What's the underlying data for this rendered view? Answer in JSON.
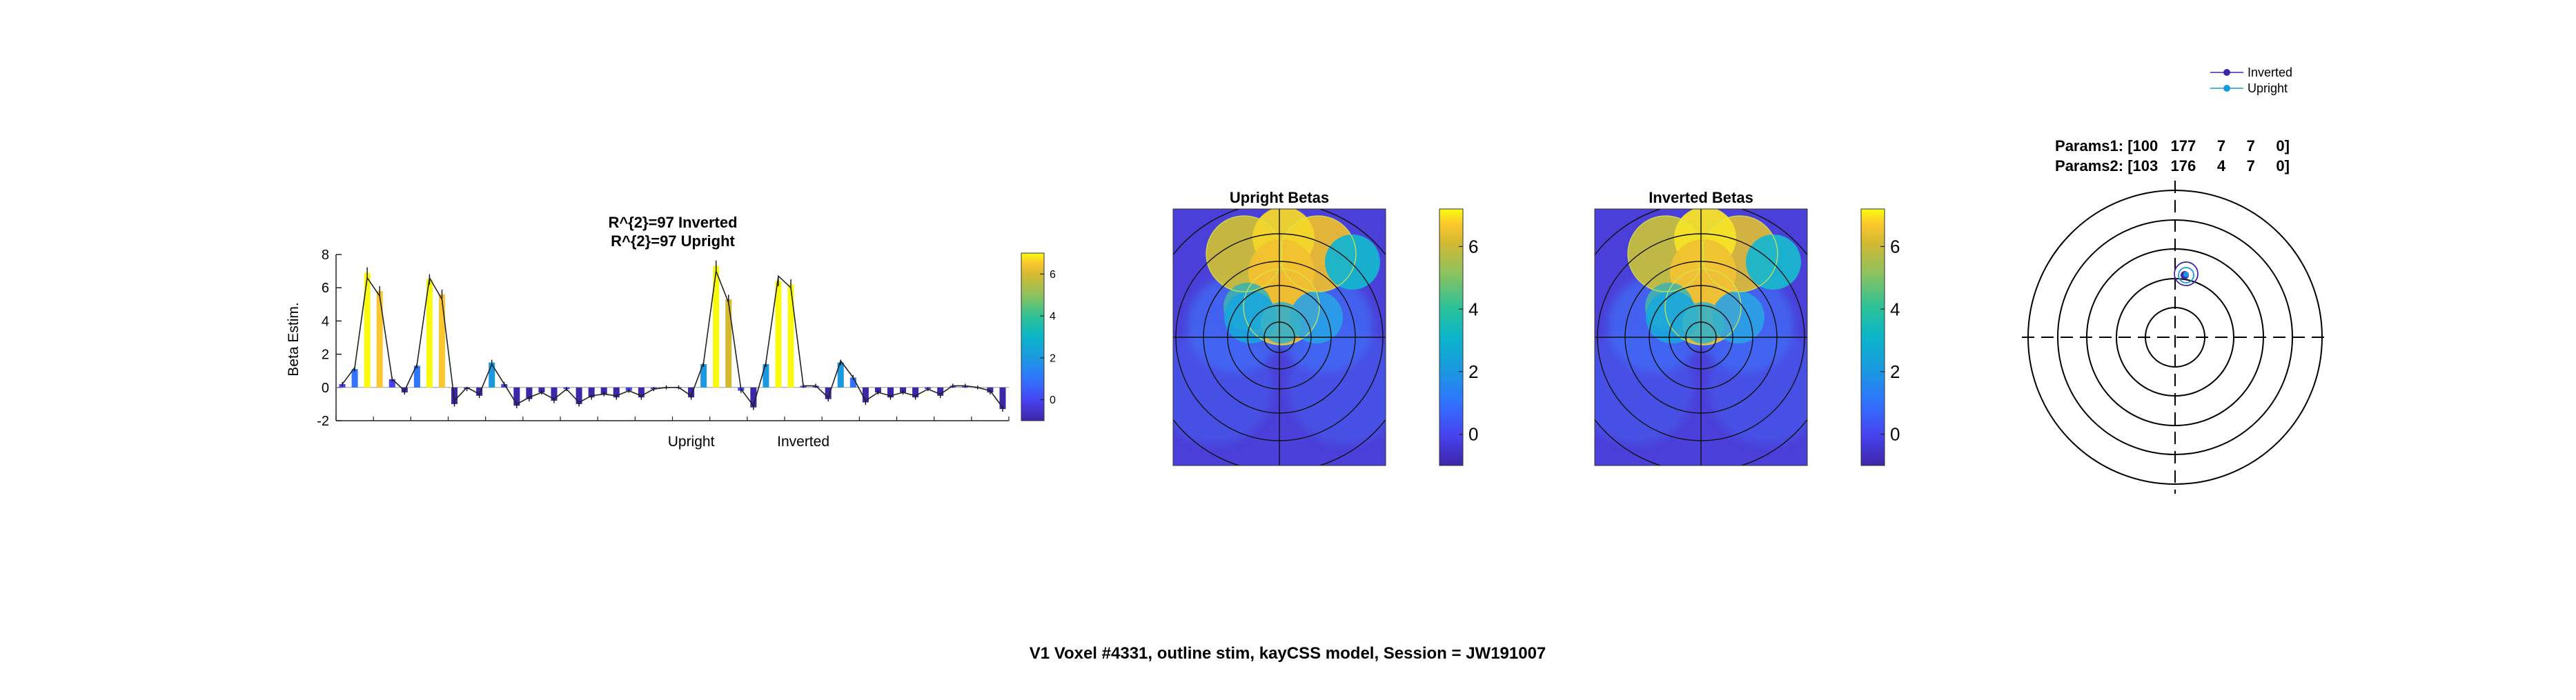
{
  "figure_title": "V1 Voxel #4331, outline stim, kayCSS model, Session = JW191007",
  "colormap": [
    "#3e26a8",
    "#4743f0",
    "#2f75fe",
    "#1b98e0",
    "#0bb5c9",
    "#2dc296",
    "#8ec25d",
    "#d4b931",
    "#fbc72e",
    "#f9fb0e"
  ],
  "chart_data": [
    {
      "type": "bar",
      "title_lines": [
        "R^{2}=97 Inverted",
        "R^{2}=97 Upright"
      ],
      "ylabel": "Beta Estim.",
      "ylim": [
        -2,
        8
      ],
      "yticks": [
        -2,
        0,
        2,
        4,
        6,
        8
      ],
      "x_labels": [
        "Upright",
        "Inverted"
      ],
      "x_label_positions": [
        28.5,
        37.5
      ],
      "values": [
        0.2,
        1.1,
        6.9,
        5.8,
        0.5,
        -0.3,
        1.3,
        6.5,
        5.6,
        -1.0,
        -0.1,
        -0.5,
        1.5,
        0.2,
        -1.1,
        -0.7,
        -0.3,
        -0.8,
        -0.1,
        -1.0,
        -0.6,
        -0.4,
        -0.6,
        -0.2,
        -0.6,
        -0.1,
        0,
        0,
        -0.6,
        1.4,
        7.3,
        5.3,
        -0.2,
        -1.2,
        1.4,
        6.4,
        6.2,
        0.1,
        0.1,
        -0.7,
        1.5,
        0.6,
        -0.9,
        -0.3,
        -0.6,
        -0.3,
        -0.6,
        -0.1,
        -0.5,
        0.1,
        0.1,
        0,
        -0.3,
        -1.3
      ],
      "model_fit": [
        0.2,
        1.2,
        6.6,
        5.5,
        0.5,
        -0.2,
        1.4,
        6.6,
        5.3,
        -0.8,
        0,
        -0.4,
        1.4,
        0.2,
        -1.0,
        -0.6,
        -0.3,
        -0.7,
        -0.1,
        -0.9,
        -0.5,
        -0.4,
        -0.5,
        -0.2,
        -0.5,
        -0.1,
        0,
        0,
        -0.5,
        1.5,
        7.0,
        5.1,
        -0.1,
        -1.1,
        1.5,
        6.7,
        6.0,
        0.1,
        0.1,
        -0.6,
        1.6,
        0.6,
        -0.8,
        -0.3,
        -0.5,
        -0.3,
        -0.5,
        -0.1,
        -0.4,
        0.1,
        0.1,
        0,
        -0.2,
        -1.2
      ],
      "colorbar": {
        "clim": [
          -1,
          7
        ],
        "ticks": [
          0,
          2,
          4,
          6
        ]
      }
    },
    {
      "type": "heatmap",
      "title": "Upright Betas",
      "colorbar": {
        "clim": [
          -1,
          7.2
        ],
        "ticks": [
          0,
          2,
          4,
          6
        ]
      }
    },
    {
      "type": "heatmap",
      "title": "Inverted Betas",
      "colorbar": {
        "clim": [
          -1,
          7.2
        ],
        "ticks": [
          0,
          2,
          4,
          6
        ]
      }
    },
    {
      "type": "scatter",
      "param_lines": [
        "Params1: [100   177     7     7     0]",
        "Params2: [103   176     4     7     0]"
      ],
      "legend": [
        "Inverted",
        "Upright"
      ],
      "legend_position": "top-right",
      "series_colors": [
        "#3e26a8",
        "#1b98e0"
      ]
    }
  ]
}
